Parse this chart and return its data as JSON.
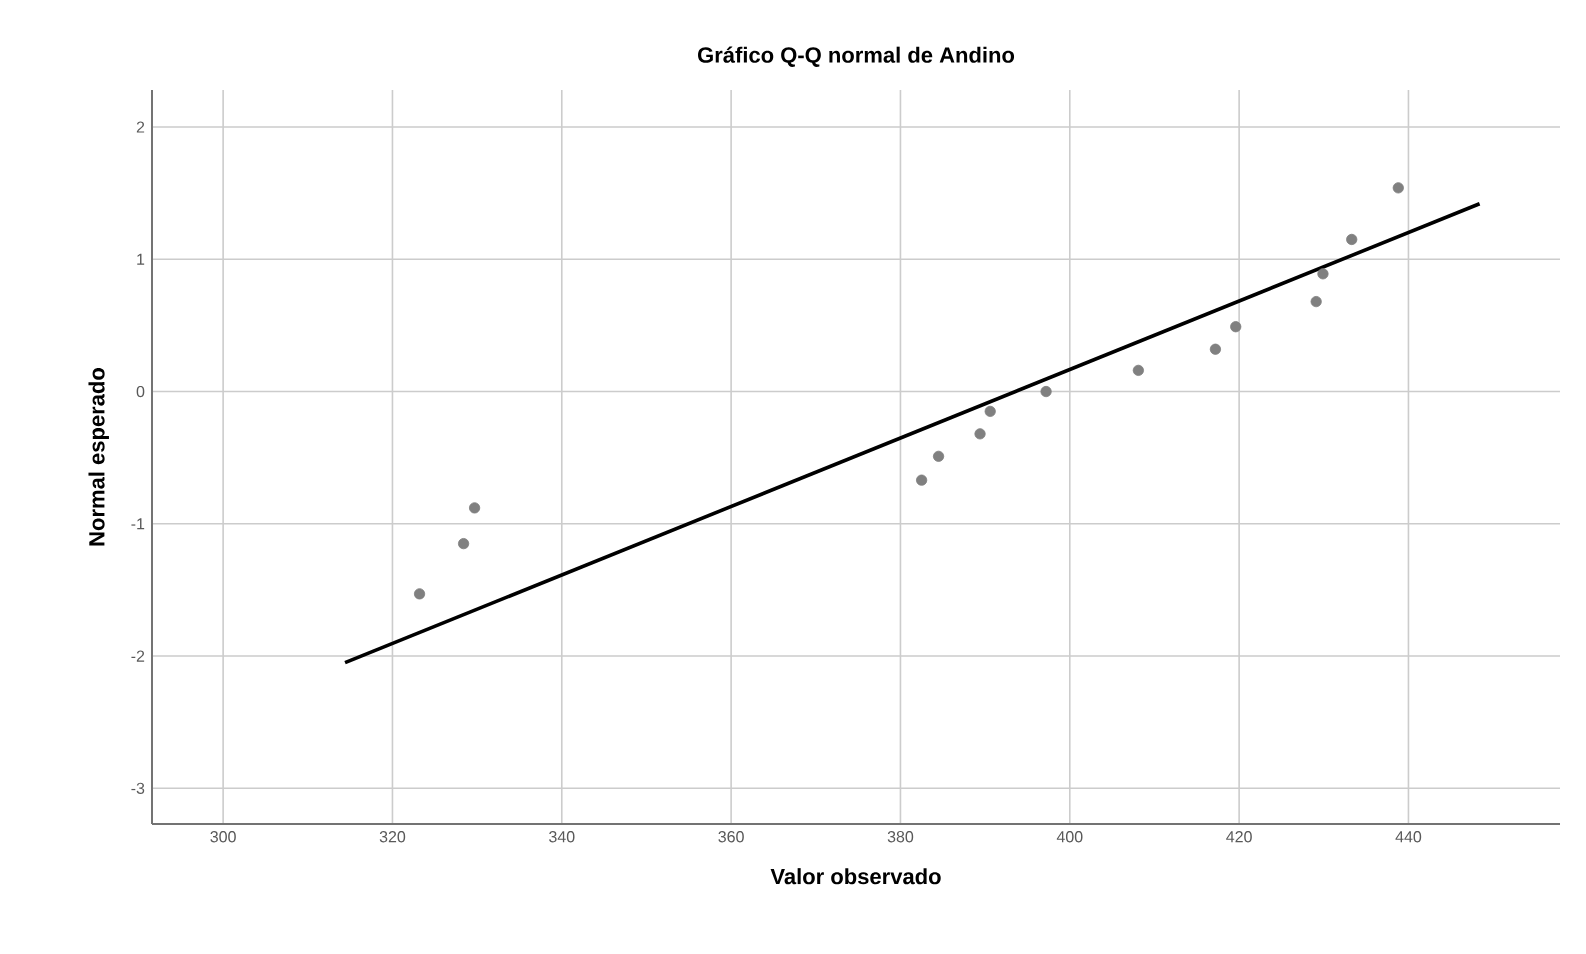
{
  "chart_data": {
    "type": "scatter",
    "title": "Gráfico Q-Q normal de Andino",
    "xlabel": "Valor observado",
    "ylabel": "Normal esperado",
    "xlim": [
      291.6,
      457.9
    ],
    "ylim": [
      -3.27,
      2.28
    ],
    "xticks": [
      300,
      320,
      340,
      360,
      380,
      400,
      420,
      440
    ],
    "yticks": [
      -3,
      -2,
      -1,
      0,
      1,
      2
    ],
    "grid": true,
    "marker": "circle",
    "series": [
      {
        "color": "#808080",
        "x": [
          323.2,
          328.4,
          329.7,
          382.5,
          384.5,
          389.4,
          390.6,
          397.2,
          408.1,
          417.2,
          419.6,
          429.1,
          429.9,
          433.3,
          438.8
        ],
        "values": [
          -1.53,
          -1.15,
          -0.88,
          -0.67,
          -0.49,
          -0.32,
          -0.15,
          0.0,
          0.16,
          0.32,
          0.49,
          0.68,
          0.89,
          1.15,
          1.54
        ]
      },
      {
        "type": "line",
        "marker": "none",
        "color": "#000000",
        "x": [
          314.4,
          448.4
        ],
        "values": [
          -2.05,
          1.42
        ]
      }
    ]
  }
}
